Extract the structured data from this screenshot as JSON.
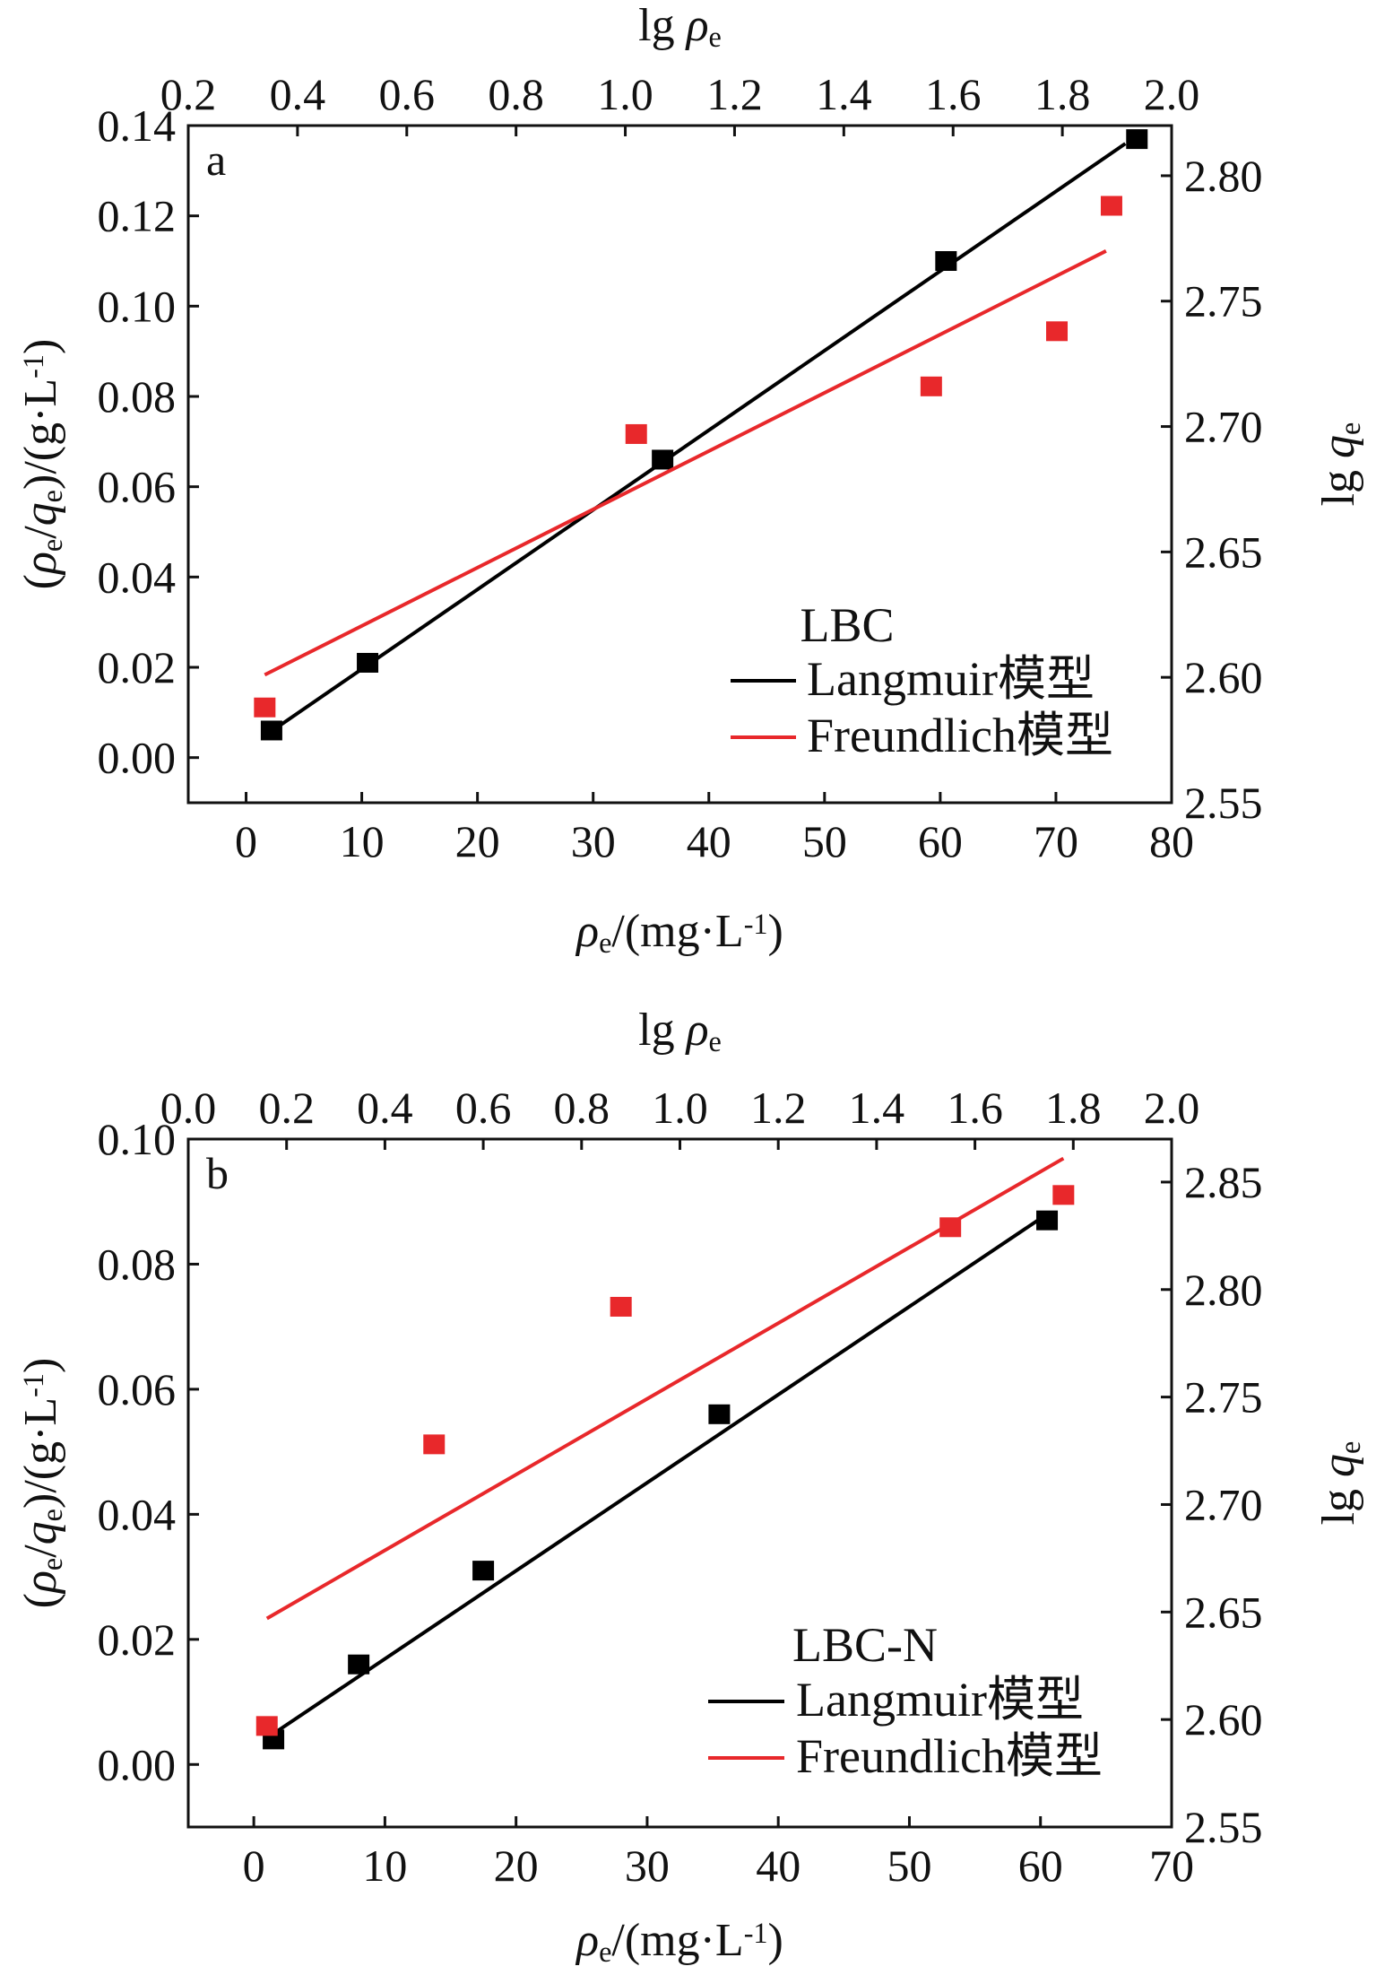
{
  "chart_data": [
    {
      "type": "scatter",
      "panel_label": "a",
      "top_axis_title": "lg ρe",
      "bottom_axis_title": "ρe/(mg·L-1)",
      "left_axis_title": "(ρe/qe)/(g·L-1)",
      "right_axis_title": "lg qe",
      "xlim": [
        -5,
        80
      ],
      "ylim": [
        -0.01,
        0.14
      ],
      "top_xlim": [
        0.2,
        2.0
      ],
      "right_ylim": [
        2.55,
        2.82
      ],
      "x_ticks": [
        "0",
        "10",
        "20",
        "30",
        "40",
        "50",
        "60",
        "70",
        "80"
      ],
      "y_ticks": [
        "0.00",
        "0.02",
        "0.04",
        "0.06",
        "0.08",
        "0.10",
        "0.12",
        "0.14"
      ],
      "top_ticks": [
        "0.2",
        "0.4",
        "0.6",
        "0.8",
        "1.0",
        "1.2",
        "1.4",
        "1.6",
        "1.8",
        "2.0"
      ],
      "right_ticks": [
        "2.55",
        "2.60",
        "2.65",
        "2.70",
        "2.75",
        "2.80"
      ],
      "legend_title": "LBC",
      "legend_placement": "bottom-right",
      "series": [
        {
          "name": "Langmuir模型",
          "color": "#000000",
          "axes": "bottom-left",
          "points": [
            [
              2.2,
              0.006
            ],
            [
              10.5,
              0.021
            ],
            [
              36,
              0.066
            ],
            [
              60.5,
              0.11
            ],
            [
              77,
              0.137
            ]
          ],
          "fit_line": [
            [
              2.0,
              0.0055
            ],
            [
              76,
              0.136
            ]
          ]
        },
        {
          "name": "Freundlich模型",
          "color": "#e8282b",
          "axes": "top-right",
          "points": [
            [
              0.34,
              2.588
            ],
            [
              1.02,
              2.697
            ],
            [
              1.56,
              2.716
            ],
            [
              1.79,
              2.738
            ],
            [
              1.89,
              2.788
            ]
          ],
          "fit_line": [
            [
              0.34,
              2.601
            ],
            [
              1.88,
              2.77
            ]
          ]
        }
      ]
    },
    {
      "type": "scatter",
      "panel_label": "b",
      "top_axis_title": "lg ρe",
      "bottom_axis_title": "ρe/(mg·L-1)",
      "left_axis_title": "(ρe/qe)/(g·L-1)",
      "right_axis_title": "lg qe",
      "xlim": [
        -5,
        70
      ],
      "ylim": [
        -0.01,
        0.1
      ],
      "top_xlim": [
        0.0,
        2.0
      ],
      "right_ylim": [
        2.55,
        2.87
      ],
      "x_ticks": [
        "0",
        "10",
        "20",
        "30",
        "40",
        "50",
        "60",
        "70"
      ],
      "y_ticks": [
        "0.00",
        "0.02",
        "0.04",
        "0.06",
        "0.08",
        "0.10"
      ],
      "top_ticks": [
        "0.0",
        "0.2",
        "0.4",
        "0.6",
        "0.8",
        "1.0",
        "1.2",
        "1.4",
        "1.6",
        "1.8",
        "2.0"
      ],
      "right_ticks": [
        "2.55",
        "2.60",
        "2.65",
        "2.70",
        "2.75",
        "2.80",
        "2.85"
      ],
      "legend_title": "LBC-N",
      "legend_placement": "bottom-right",
      "series": [
        {
          "name": "Langmuir模型",
          "color": "#000000",
          "axes": "bottom-left",
          "points": [
            [
              1.5,
              0.004
            ],
            [
              8,
              0.016
            ],
            [
              17.5,
              0.031
            ],
            [
              35.5,
              0.056
            ],
            [
              60.5,
              0.087
            ]
          ],
          "fit_line": [
            [
              1.2,
              0.0045
            ],
            [
              60.5,
              0.088
            ]
          ]
        },
        {
          "name": "Freundlich模型",
          "color": "#e8282b",
          "axes": "top-right",
          "points": [
            [
              0.16,
              2.597
            ],
            [
              0.5,
              2.728
            ],
            [
              0.88,
              2.792
            ],
            [
              1.55,
              2.829
            ],
            [
              1.78,
              2.844
            ]
          ],
          "fit_line": [
            [
              0.16,
              2.647
            ],
            [
              1.78,
              2.861
            ]
          ]
        }
      ]
    }
  ]
}
